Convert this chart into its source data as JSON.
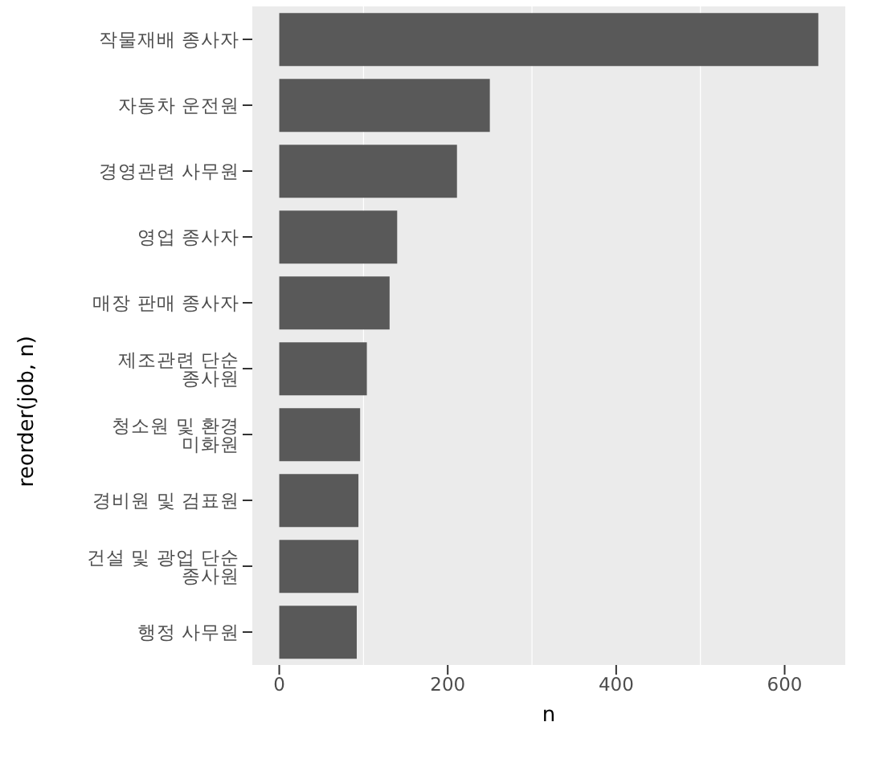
{
  "chart_data": {
    "type": "bar",
    "orientation": "horizontal",
    "xlabel": "n",
    "ylabel": "reorder(job, n)",
    "categories": [
      "작물재배 종사자",
      "자동차 운전원",
      "경영관련 사무원",
      "영업 종사자",
      "매장 판매 종사자",
      "제조관련 단순 종사원",
      "청소원 및 환경 미화원",
      "경비원 및 검표원",
      "건설 및 광업 단순 종사원",
      "행정 사무원"
    ],
    "values": [
      640,
      250,
      211,
      140,
      131,
      104,
      96,
      94,
      94,
      92
    ],
    "color": "#595959",
    "xlim": [
      -32,
      672
    ],
    "xticks": [
      0,
      200,
      400,
      600
    ],
    "grid": true
  }
}
